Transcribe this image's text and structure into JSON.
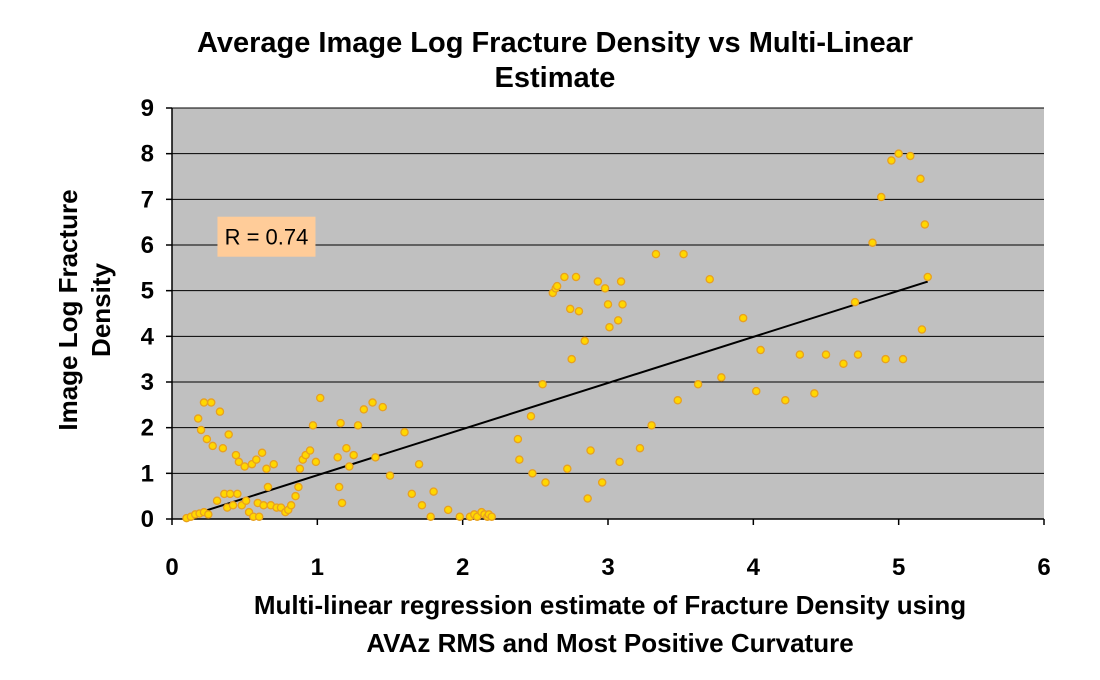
{
  "chart_data": {
    "type": "scatter",
    "title_lines": [
      "Average Image Log Fracture Density vs Multi-Linear",
      "Estimate"
    ],
    "xlabel_lines": [
      "Multi-linear regression estimate of Fracture Density using",
      "AVAz RMS and Most Positive Curvature"
    ],
    "ylabel_lines": [
      "Image Log Fracture",
      "Density"
    ],
    "xlim": [
      0,
      6
    ],
    "ylim": [
      0,
      9
    ],
    "x_ticks": [
      "0",
      "1",
      "2",
      "3",
      "4",
      "5",
      "6"
    ],
    "y_ticks": [
      "0",
      "1",
      "2",
      "3",
      "4",
      "5",
      "6",
      "7",
      "8",
      "9"
    ],
    "grid": "horizontal",
    "plot_background": "#c0c0c0",
    "marker_fill": "#ffd700",
    "marker_edge": "#e8a020",
    "trendline_color": "#000000",
    "annotation": {
      "text": "R = 0.74",
      "background": "#ffcc99",
      "x": 0.65,
      "y": 6.05
    },
    "trendline": {
      "x": [
        0.1,
        5.2
      ],
      "y": [
        0.05,
        5.2
      ]
    },
    "points": [
      [
        0.1,
        0.02
      ],
      [
        0.13,
        0.05
      ],
      [
        0.16,
        0.1
      ],
      [
        0.19,
        0.12
      ],
      [
        0.22,
        0.15
      ],
      [
        0.25,
        0.1
      ],
      [
        0.18,
        2.2
      ],
      [
        0.2,
        1.95
      ],
      [
        0.22,
        2.55
      ],
      [
        0.24,
        1.75
      ],
      [
        0.27,
        2.55
      ],
      [
        0.28,
        1.6
      ],
      [
        0.31,
        0.4
      ],
      [
        0.33,
        2.35
      ],
      [
        0.35,
        1.55
      ],
      [
        0.36,
        0.55
      ],
      [
        0.38,
        0.25
      ],
      [
        0.39,
        1.85
      ],
      [
        0.4,
        0.55
      ],
      [
        0.42,
        0.3
      ],
      [
        0.44,
        1.4
      ],
      [
        0.45,
        0.55
      ],
      [
        0.46,
        1.25
      ],
      [
        0.48,
        0.3
      ],
      [
        0.5,
        1.15
      ],
      [
        0.51,
        0.4
      ],
      [
        0.53,
        0.15
      ],
      [
        0.55,
        1.2
      ],
      [
        0.56,
        0.05
      ],
      [
        0.58,
        1.3
      ],
      [
        0.59,
        0.35
      ],
      [
        0.6,
        0.05
      ],
      [
        0.62,
        1.45
      ],
      [
        0.63,
        0.3
      ],
      [
        0.65,
        1.1
      ],
      [
        0.66,
        0.7
      ],
      [
        0.68,
        0.3
      ],
      [
        0.7,
        1.2
      ],
      [
        0.72,
        0.25
      ],
      [
        0.75,
        0.25
      ],
      [
        0.78,
        0.15
      ],
      [
        0.8,
        0.2
      ],
      [
        0.82,
        0.3
      ],
      [
        0.85,
        0.5
      ],
      [
        0.87,
        0.7
      ],
      [
        0.88,
        1.1
      ],
      [
        0.9,
        1.3
      ],
      [
        0.92,
        1.4
      ],
      [
        0.95,
        1.5
      ],
      [
        0.97,
        2.05
      ],
      [
        0.99,
        1.25
      ],
      [
        1.02,
        2.65
      ],
      [
        1.14,
        1.35
      ],
      [
        1.15,
        0.7
      ],
      [
        1.16,
        2.1
      ],
      [
        1.17,
        0.35
      ],
      [
        1.2,
        1.55
      ],
      [
        1.22,
        1.15
      ],
      [
        1.25,
        1.4
      ],
      [
        1.28,
        2.05
      ],
      [
        1.32,
        2.4
      ],
      [
        1.38,
        2.55
      ],
      [
        1.4,
        1.35
      ],
      [
        1.45,
        2.45
      ],
      [
        1.5,
        0.95
      ],
      [
        1.6,
        1.9
      ],
      [
        1.65,
        0.55
      ],
      [
        1.7,
        1.2
      ],
      [
        1.72,
        0.3
      ],
      [
        1.78,
        0.05
      ],
      [
        1.8,
        0.6
      ],
      [
        1.9,
        0.2
      ],
      [
        1.98,
        0.05
      ],
      [
        2.05,
        0.05
      ],
      [
        2.08,
        0.1
      ],
      [
        2.1,
        0.05
      ],
      [
        2.13,
        0.15
      ],
      [
        2.15,
        0.1
      ],
      [
        2.17,
        0.05
      ],
      [
        2.18,
        0.1
      ],
      [
        2.2,
        0.05
      ],
      [
        2.38,
        1.75
      ],
      [
        2.39,
        1.3
      ],
      [
        2.47,
        2.25
      ],
      [
        2.48,
        1.0
      ],
      [
        2.55,
        2.95
      ],
      [
        2.57,
        0.8
      ],
      [
        2.62,
        4.95
      ],
      [
        2.64,
        5.05
      ],
      [
        2.65,
        5.1
      ],
      [
        2.7,
        5.3
      ],
      [
        2.72,
        1.1
      ],
      [
        2.74,
        4.6
      ],
      [
        2.75,
        3.5
      ],
      [
        2.78,
        5.3
      ],
      [
        2.8,
        4.55
      ],
      [
        2.84,
        3.9
      ],
      [
        2.86,
        0.45
      ],
      [
        2.88,
        1.5
      ],
      [
        2.93,
        5.2
      ],
      [
        2.96,
        0.8
      ],
      [
        2.98,
        5.05
      ],
      [
        3.0,
        4.7
      ],
      [
        3.01,
        4.2
      ],
      [
        3.07,
        4.35
      ],
      [
        3.08,
        1.25
      ],
      [
        3.09,
        5.2
      ],
      [
        3.1,
        4.7
      ],
      [
        3.22,
        1.55
      ],
      [
        3.3,
        2.05
      ],
      [
        3.33,
        5.8
      ],
      [
        3.48,
        2.6
      ],
      [
        3.52,
        5.8
      ],
      [
        3.62,
        2.95
      ],
      [
        3.7,
        5.25
      ],
      [
        3.78,
        3.1
      ],
      [
        3.93,
        4.4
      ],
      [
        4.02,
        2.8
      ],
      [
        4.05,
        3.7
      ],
      [
        4.22,
        2.6
      ],
      [
        4.32,
        3.6
      ],
      [
        4.42,
        2.75
      ],
      [
        4.5,
        3.6
      ],
      [
        4.62,
        3.4
      ],
      [
        4.7,
        4.75
      ],
      [
        4.72,
        3.6
      ],
      [
        4.82,
        6.05
      ],
      [
        4.88,
        7.05
      ],
      [
        4.91,
        3.5
      ],
      [
        4.95,
        7.85
      ],
      [
        5.0,
        8.0
      ],
      [
        5.03,
        3.5
      ],
      [
        5.08,
        7.95
      ],
      [
        5.15,
        7.45
      ],
      [
        5.16,
        4.15
      ],
      [
        5.18,
        6.45
      ],
      [
        5.2,
        5.3
      ]
    ]
  }
}
